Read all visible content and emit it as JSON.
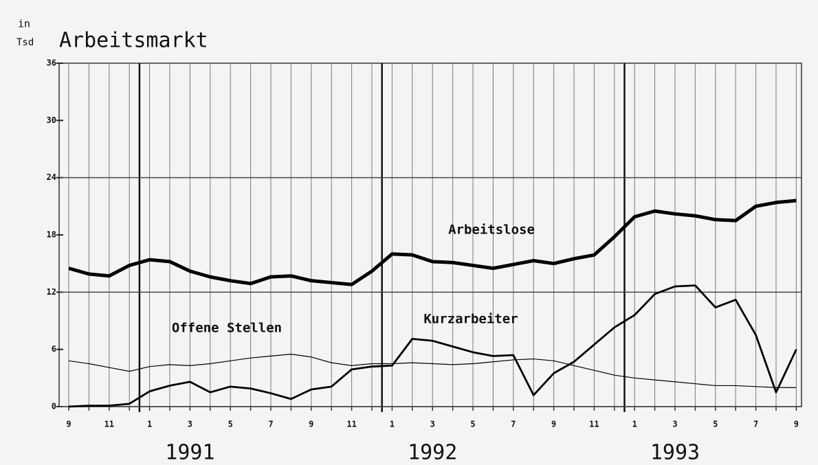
{
  "chart_data": {
    "type": "line",
    "title": "Arbeitsmarkt",
    "y_label": [
      "in",
      "Tsd"
    ],
    "categories": [
      "9",
      null,
      "11",
      null,
      "1",
      null,
      "3",
      null,
      "5",
      null,
      "7",
      null,
      "9",
      null,
      "11",
      null,
      "1",
      null,
      "3",
      null,
      "5",
      null,
      "7",
      null,
      "9",
      null,
      "11",
      null,
      "1",
      null,
      "3",
      null,
      "5",
      null,
      "7",
      null,
      "9"
    ],
    "years": [
      "1991",
      "1992",
      "1993"
    ],
    "ylim": [
      0,
      36
    ],
    "yticks": [
      0,
      6,
      12,
      18,
      24,
      30,
      36
    ],
    "series": [
      {
        "name": "Arbeitslose",
        "color": "#000000",
        "values": [
          14.5,
          13.9,
          13.7,
          14.8,
          15.4,
          15.2,
          14.2,
          13.6,
          13.2,
          12.9,
          13.6,
          13.7,
          13.2,
          13.0,
          12.8,
          14.2,
          16.0,
          15.9,
          15.2,
          15.1,
          14.8,
          14.5,
          14.9,
          15.3,
          15.0,
          15.5,
          15.9,
          17.8,
          19.9,
          20.5,
          20.2,
          20.0,
          19.6,
          19.5,
          21.0,
          21.4,
          21.6
        ]
      },
      {
        "name": "Kurzarbeiter",
        "color": "#000000",
        "values": [
          0,
          0.1,
          0.1,
          0.3,
          1.6,
          2.2,
          2.6,
          1.5,
          2.1,
          1.9,
          1.4,
          0.8,
          1.8,
          2.1,
          3.9,
          4.2,
          4.3,
          7.1,
          6.9,
          6.3,
          5.7,
          5.3,
          5.4,
          1.2,
          3.5,
          4.7,
          6.5,
          8.3,
          9.6,
          11.8,
          12.6,
          12.7,
          10.4,
          11.2,
          7.5,
          1.5,
          6.0
        ]
      },
      {
        "name": "Offene Stellen",
        "color": "#000000",
        "values": [
          4.8,
          4.5,
          4.1,
          3.7,
          4.2,
          4.4,
          4.3,
          4.5,
          4.8,
          5.1,
          5.3,
          5.5,
          5.2,
          4.6,
          4.3,
          4.5,
          4.5,
          4.6,
          4.5,
          4.4,
          4.5,
          4.7,
          4.9,
          5.0,
          4.8,
          4.3,
          3.8,
          3.3,
          3.0,
          2.8,
          2.6,
          2.4,
          2.2,
          2.2,
          2.1,
          2.0,
          2.0
        ]
      }
    ]
  }
}
